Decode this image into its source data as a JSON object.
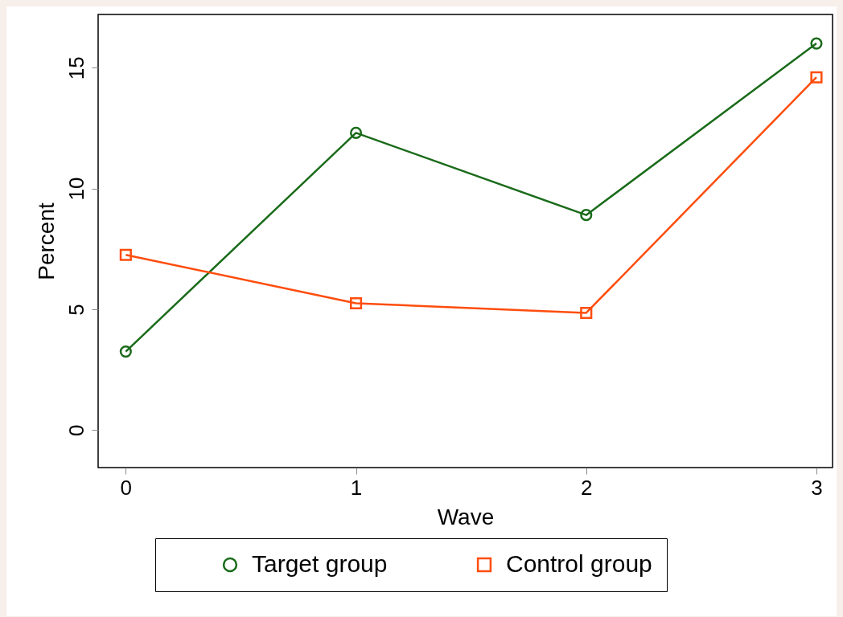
{
  "chart_data": {
    "type": "line",
    "xlabel": "Wave",
    "ylabel": "Percent",
    "x": [
      0,
      1,
      2,
      3
    ],
    "xlim": [
      -0.12,
      3.07
    ],
    "xticks": [
      0,
      1,
      2,
      3
    ],
    "ylim": [
      -1.55,
      17.2
    ],
    "yticks": [
      0,
      5,
      10,
      15
    ],
    "grid": false,
    "legend": "bottom",
    "series": [
      {
        "name": "Target group",
        "color": "#1a6b1a",
        "marker": "circle",
        "values": [
          3.25,
          12.3,
          8.9,
          16
        ]
      },
      {
        "name": "Control group",
        "color": "#ff4d0d",
        "marker": "square",
        "values": [
          7.25,
          5.25,
          4.85,
          14.6
        ]
      }
    ]
  }
}
